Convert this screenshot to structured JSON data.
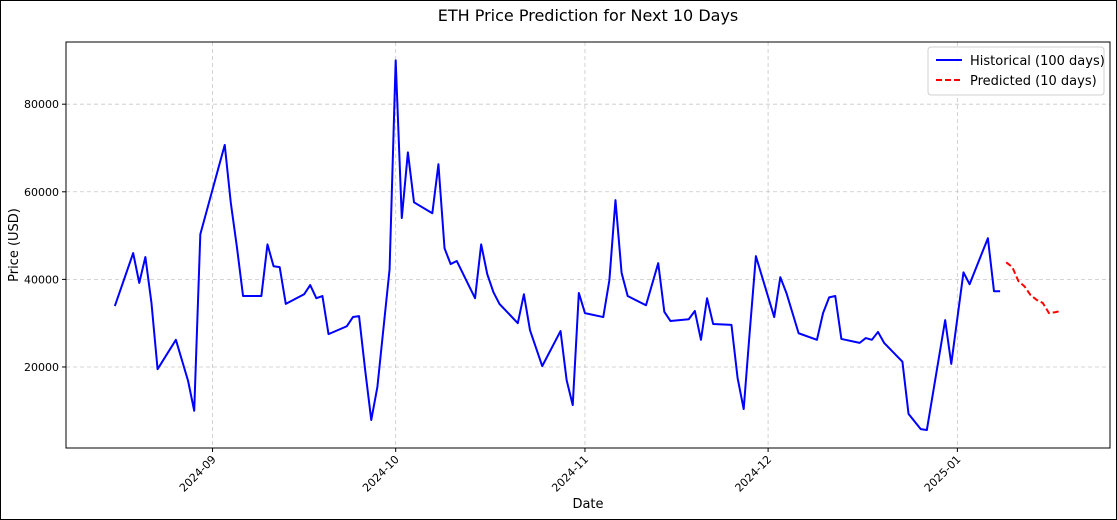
{
  "chart_data": {
    "type": "line",
    "title": "ETH Price Prediction for Next 10 Days",
    "x_label": "Date",
    "y_label": "Price (USD)",
    "series": [
      {
        "name": "Historical (100 days)",
        "color": "#0000ff",
        "dash": false,
        "x": [
          "2024-08-16",
          "2024-08-19",
          "2024-08-20",
          "2024-08-21",
          "2024-08-22",
          "2024-08-23",
          "2024-08-26",
          "2024-08-28",
          "2024-08-29",
          "2024-08-30",
          "2024-09-03",
          "2024-09-04",
          "2024-09-05",
          "2024-09-06",
          "2024-09-09",
          "2024-09-10",
          "2024-09-11",
          "2024-09-12",
          "2024-09-13",
          "2024-09-16",
          "2024-09-17",
          "2024-09-18",
          "2024-09-19",
          "2024-09-20",
          "2024-09-23",
          "2024-09-24",
          "2024-09-25",
          "2024-09-26",
          "2024-09-27",
          "2024-09-28",
          "2024-09-30",
          "2024-10-01",
          "2024-10-02",
          "2024-10-03",
          "2024-10-04",
          "2024-10-07",
          "2024-10-08",
          "2024-10-09",
          "2024-10-10",
          "2024-10-11",
          "2024-10-14",
          "2024-10-15",
          "2024-10-16",
          "2024-10-17",
          "2024-10-18",
          "2024-10-21",
          "2024-10-22",
          "2024-10-23",
          "2024-10-25",
          "2024-10-28",
          "2024-10-29",
          "2024-10-30",
          "2024-10-31",
          "2024-11-01",
          "2024-11-04",
          "2024-11-05",
          "2024-11-06",
          "2024-11-07",
          "2024-11-08",
          "2024-11-11",
          "2024-11-13",
          "2024-11-14",
          "2024-11-15",
          "2024-11-18",
          "2024-11-19",
          "2024-11-20",
          "2024-11-21",
          "2024-11-22",
          "2024-11-25",
          "2024-11-26",
          "2024-11-27",
          "2024-11-28",
          "2024-11-29",
          "2024-12-02",
          "2024-12-03",
          "2024-12-04",
          "2024-12-06",
          "2024-12-09",
          "2024-12-10",
          "2024-12-11",
          "2024-12-12",
          "2024-12-13",
          "2024-12-16",
          "2024-12-17",
          "2024-12-18",
          "2024-12-19",
          "2024-12-20",
          "2024-12-23",
          "2024-12-24",
          "2024-12-26",
          "2024-12-27",
          "2024-12-30",
          "2024-12-31",
          "2025-01-02",
          "2025-01-03",
          "2025-01-06",
          "2025-01-07",
          "2025-01-08"
        ],
        "values": [
          33900,
          46000,
          39200,
          45100,
          34600,
          19500,
          26200,
          16800,
          10000,
          50300,
          70700,
          57400,
          47300,
          36200,
          36200,
          48000,
          43000,
          42800,
          34400,
          36600,
          38700,
          35700,
          36200,
          27500,
          29300,
          31400,
          31600,
          19300,
          7900,
          15400,
          42300,
          90000,
          54000,
          69000,
          57600,
          55100,
          66300,
          47100,
          43500,
          44200,
          35700,
          48000,
          41200,
          37100,
          34400,
          30000,
          36600,
          28400,
          20200,
          28200,
          17000,
          11300,
          36900,
          32300,
          31400,
          39800,
          58100,
          41500,
          36200,
          34100,
          43700,
          32600,
          30500,
          30900,
          32800,
          26200,
          35700,
          29800,
          29600,
          17500,
          10400,
          28200,
          45300,
          31400,
          40500,
          36900,
          27700,
          26200,
          32300,
          35900,
          36200,
          26400,
          25500,
          26600,
          26200,
          28000,
          25500,
          21200,
          9300,
          5800,
          5600,
          30700,
          20700,
          41600,
          38900,
          49400,
          37300,
          37300
        ]
      },
      {
        "name": "Predicted (10 days)",
        "color": "#ff0000",
        "dash": true,
        "x": [
          "2025-01-09",
          "2025-01-10",
          "2025-01-11",
          "2025-01-12",
          "2025-01-13",
          "2025-01-14",
          "2025-01-15",
          "2025-01-16",
          "2025-01-17",
          "2025-01-18"
        ],
        "values": [
          43900,
          42800,
          39600,
          38400,
          36400,
          35300,
          34600,
          32300,
          32500,
          32800
        ]
      }
    ],
    "xlim": [
      "2024-08-08",
      "2025-01-26"
    ],
    "xticks": [
      {
        "value": "2024-09-01",
        "label": "2024-09"
      },
      {
        "value": "2024-10-01",
        "label": "2024-10"
      },
      {
        "value": "2024-11-01",
        "label": "2024-11"
      },
      {
        "value": "2024-12-01",
        "label": "2024-12"
      },
      {
        "value": "2025-01-01",
        "label": "2025-01"
      }
    ],
    "ylim": [
      1500,
      94200
    ],
    "yticks": [
      20000,
      40000,
      60000,
      80000
    ],
    "grid": true,
    "legend": "upper right"
  }
}
